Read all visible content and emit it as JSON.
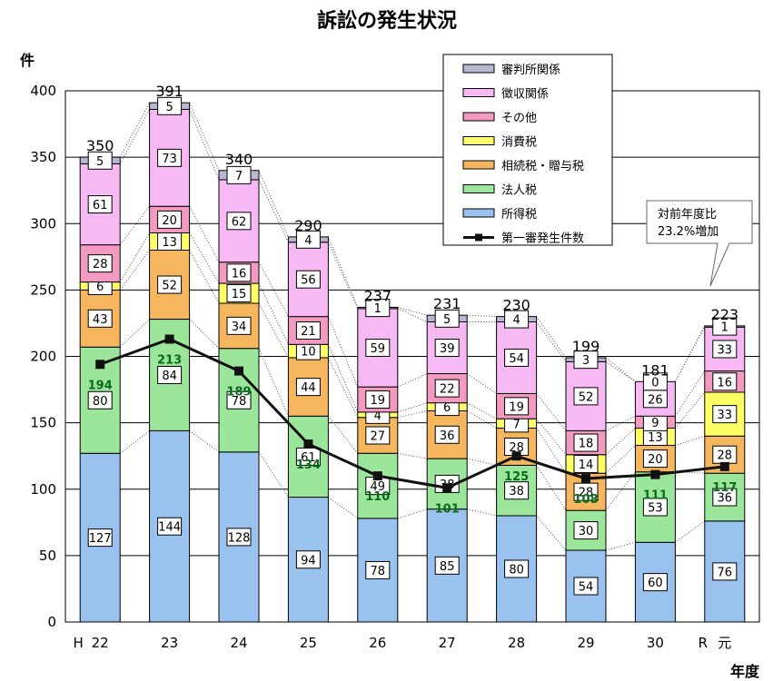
{
  "chart_data": {
    "type": "bar",
    "stacked": true,
    "title": "訴訟の発生状況",
    "ylabel": "件",
    "xlabel": "年度",
    "ylim": [
      0,
      400
    ],
    "yticks": [
      0,
      50,
      100,
      150,
      200,
      250,
      300,
      350,
      400
    ],
    "grid": true,
    "legend_position": "top-right",
    "categories": [
      "22",
      "23",
      "24",
      "25",
      "26",
      "27",
      "28",
      "29",
      "30",
      "元"
    ],
    "era_labels": [
      "H",
      "R"
    ],
    "series": [
      {
        "name": "所得税",
        "color": "#99c2ee",
        "values": [
          127,
          144,
          128,
          94,
          78,
          85,
          80,
          54,
          60,
          76
        ]
      },
      {
        "name": "法人税",
        "color": "#9ce69c",
        "values": [
          80,
          84,
          78,
          61,
          49,
          38,
          38,
          30,
          53,
          36
        ]
      },
      {
        "name": "相続税・贈与税",
        "color": "#f5b65e",
        "values": [
          43,
          52,
          34,
          44,
          27,
          36,
          28,
          28,
          20,
          28
        ]
      },
      {
        "name": "消費税",
        "color": "#ffff66",
        "values": [
          6,
          13,
          15,
          10,
          4,
          6,
          7,
          14,
          13,
          33
        ]
      },
      {
        "name": "その他",
        "color": "#f29ac0",
        "values": [
          28,
          20,
          16,
          21,
          19,
          22,
          19,
          18,
          9,
          16
        ]
      },
      {
        "name": "徴収関係",
        "color": "#f7b9f3",
        "values": [
          61,
          73,
          62,
          56,
          59,
          39,
          54,
          52,
          26,
          33
        ]
      },
      {
        "name": "審判所関係",
        "color": "#b7b7cf",
        "values": [
          5,
          5,
          7,
          4,
          1,
          5,
          4,
          3,
          0,
          1
        ]
      }
    ],
    "totals": [
      350,
      391,
      340,
      290,
      237,
      231,
      230,
      199,
      181,
      223
    ],
    "line": {
      "name": "第一審発生件数",
      "color": "#111111",
      "values": [
        194,
        213,
        189,
        134,
        110,
        101,
        125,
        108,
        111,
        117
      ]
    },
    "annotation": {
      "line1": "対前年度比",
      "line2": "23.2%増加"
    }
  }
}
